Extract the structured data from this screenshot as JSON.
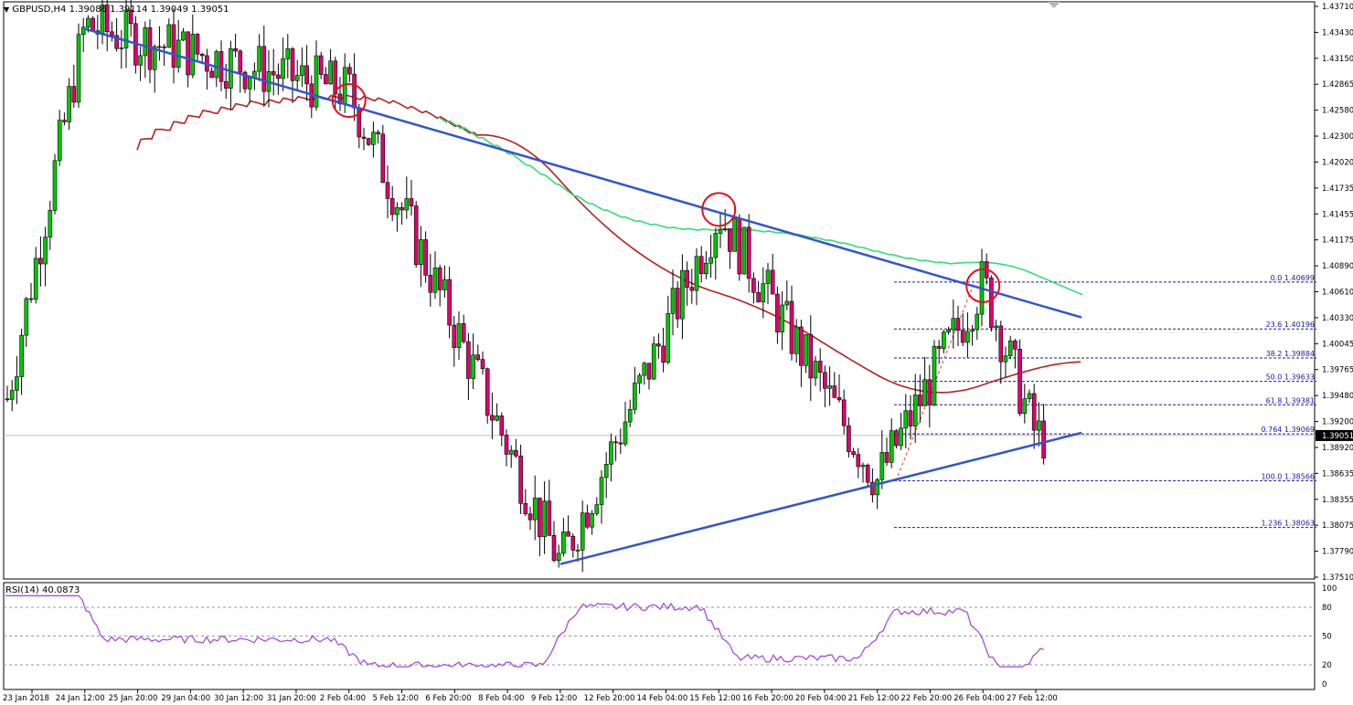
{
  "header": {
    "symbol_line": "GBPUSD,H4  1.39086 1.39114 1.39049 1.39051",
    "rsi_line": "RSI(14) 40.0873"
  },
  "colors": {
    "bull": "#00c800",
    "bear": "#e0006c",
    "ma_slow": "#b22222",
    "ma_fast": "#33dd77",
    "trend": "#3355cc",
    "fib": "#1a1aa0",
    "rsi": "#a040d8",
    "marker": "#e01020"
  },
  "chart_data": [
    {
      "type": "candlestick",
      "title": "GBPUSD,H4",
      "ylim": [
        1.3751,
        1.4371
      ],
      "y_ticks": [
        "1.43710",
        "1.43430",
        "1.43150",
        "1.42865",
        "1.42580",
        "1.42300",
        "1.42020",
        "1.41735",
        "1.41455",
        "1.41175",
        "1.40890",
        "1.40610",
        "1.40330",
        "1.40045",
        "1.39765",
        "1.39480",
        "1.39200",
        "1.38920",
        "1.38635",
        "1.38355",
        "1.38075",
        "1.37790",
        "1.37510"
      ],
      "x_ticks": [
        "23 Jan 2018",
        "24 Jan 12:00",
        "25 Jan 20:00",
        "29 Jan 04:00",
        "30 Jan 12:00",
        "31 Jan 20:00",
        "2 Feb 04:00",
        "5 Feb 12:00",
        "6 Feb 20:00",
        "8 Feb 04:00",
        "9 Feb 12:00",
        "12 Feb 20:00",
        "14 Feb 04:00",
        "15 Feb 12:00",
        "16 Feb 20:00",
        "20 Feb 04:00",
        "21 Feb 12:00",
        "22 Feb 20:00",
        "26 Feb 04:00",
        "27 Feb 12:00"
      ],
      "current_price": "1.39051",
      "key_points": [
        {
          "label": "24 Jan 12:00",
          "price": 1.4345
        },
        {
          "label": "2 Feb 04:00",
          "price": 1.4275
        },
        {
          "label": "9 Feb 12:00",
          "price": 1.3767
        },
        {
          "label": "15 Feb 12:00",
          "price": 1.4145
        },
        {
          "label": "21 Feb 12:00",
          "price": 1.3857
        },
        {
          "label": "26 Feb 04:00",
          "price": 1.407
        },
        {
          "label": "27 Feb 12:00",
          "price": 1.3905
        }
      ],
      "fib_levels": [
        {
          "label": "0.0 1.40699",
          "price": 1.40699
        },
        {
          "label": "23.6 1.40196",
          "price": 1.40196
        },
        {
          "label": "38.2 1.39884",
          "price": 1.39884
        },
        {
          "label": "50.0 1.39633",
          "price": 1.39633
        },
        {
          "label": "61.8 1.39381",
          "price": 1.39381
        },
        {
          "label": "0.764 1.39069",
          "price": 1.39069
        },
        {
          "label": "100.0 1.38566",
          "price": 1.38566
        },
        {
          "label": "1.236 1.38063",
          "price": 1.38063
        }
      ],
      "trendlines": [
        {
          "name": "resistance",
          "from": {
            "label": "24 Jan 12:00",
            "price": 1.4342
          },
          "to": {
            "label": "27 Feb 12:00",
            "price": 1.4032
          }
        },
        {
          "name": "support",
          "from": {
            "label": "9 Feb 12:00",
            "price": 1.3767
          },
          "to": {
            "label": "27 Feb 12:00",
            "price": 1.3908
          }
        }
      ],
      "highlighted_touches": [
        {
          "label": "2 Feb 04:00",
          "price": 1.4265
        },
        {
          "label": "15 Feb 12:00",
          "price": 1.4148
        },
        {
          "label": "26 Feb 04:00",
          "price": 1.4066
        }
      ]
    },
    {
      "type": "line",
      "title": "RSI(14) 40.0873",
      "ylim": [
        0,
        100
      ],
      "y_ticks": [
        "100",
        "80",
        "50",
        "20",
        "0"
      ],
      "levels": [
        80,
        50,
        20
      ],
      "last_value": 40.0873
    }
  ]
}
